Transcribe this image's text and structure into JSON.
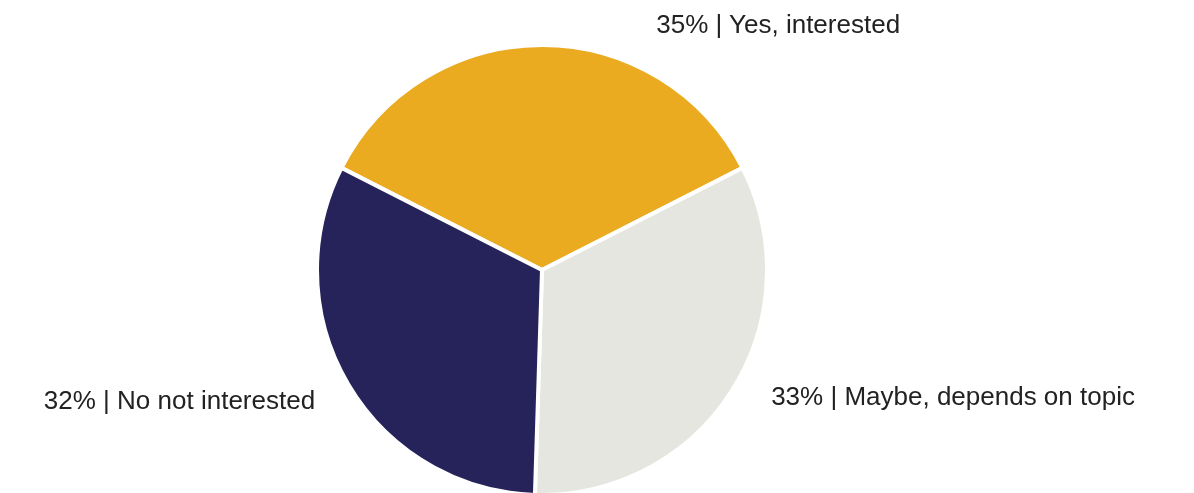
{
  "chart_data": {
    "type": "pie",
    "categories": [
      "Yes, interested",
      "Maybe, depends on topic",
      "No not interested"
    ],
    "values": [
      35,
      33,
      32
    ],
    "value_labels": [
      "35% |",
      "33% |",
      "32% |"
    ],
    "colors": [
      "#eaab21",
      "#e6e6e0",
      "#26235a"
    ]
  }
}
